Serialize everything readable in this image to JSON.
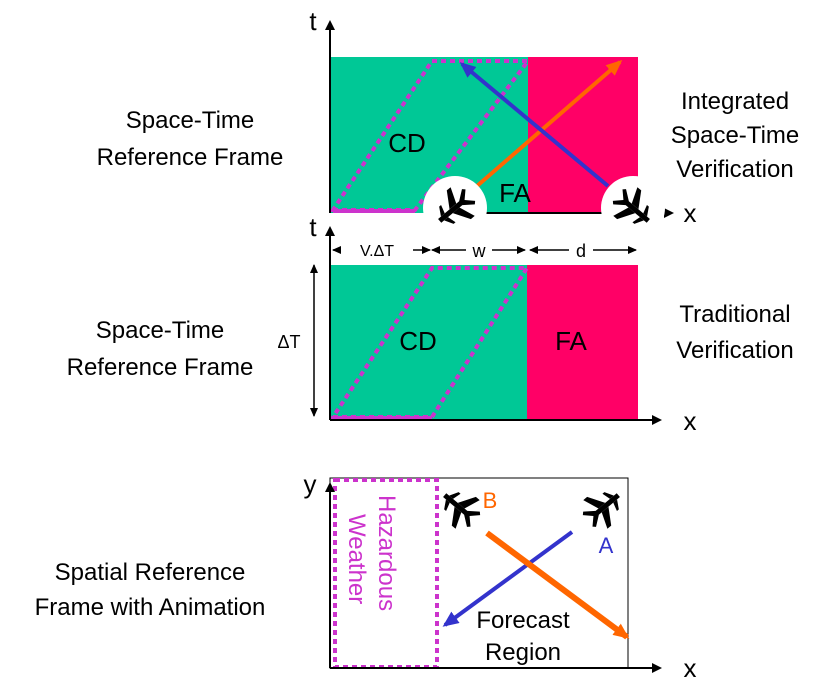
{
  "top_panel": {
    "caption_line1": "Space-Time",
    "caption_line2": "Reference Frame",
    "right_line1": "Integrated",
    "right_line2": "Space-Time",
    "right_line3": "Verification",
    "axis_t": "t",
    "axis_x": "x",
    "region_cd": "CD",
    "region_fa": "FA"
  },
  "middle_panel": {
    "caption_line1": "Space-Time",
    "caption_line2": "Reference Frame",
    "right_line1": "Traditional",
    "right_line2": "Verification",
    "axis_t": "t",
    "axis_x": "x",
    "region_cd": "CD",
    "region_fa": "FA",
    "dim_vdt": "V.ΔT",
    "dim_w": "w",
    "dim_d": "d",
    "dim_dt": "ΔT"
  },
  "bottom_panel": {
    "caption_line1": "Spatial Reference",
    "caption_line2": "Frame with Animation",
    "axis_y": "y",
    "axis_x": "x",
    "hazard_line1": "Hazardous",
    "hazard_line2": "Weather",
    "forecast_line1": "Forecast",
    "forecast_line2": "Region",
    "label_a": "A",
    "label_b": "B"
  },
  "colors": {
    "cd_green": "#00c896",
    "fa_pink": "#ff0066",
    "hazard_magenta": "#cc33cc",
    "track_blue": "#3333cc",
    "track_orange": "#ff6600"
  }
}
